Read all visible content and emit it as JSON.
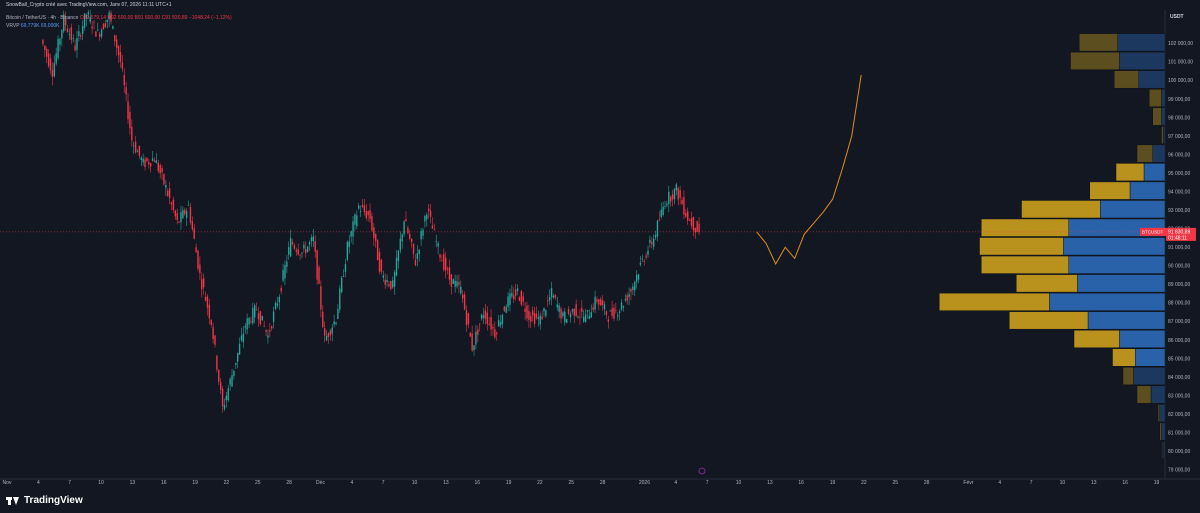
{
  "header": {
    "title": "SnowBall_Crypto créé avec TradingView.com, Janv 07, 2026 11:11 UTC+1"
  },
  "legend": {
    "symbol": "Bitcoin / TetherUS · 4h · Binance",
    "ohlc": "O92 579,14 H92 600,00 B91 600,00 C91 830,89 −1048,24 (−1,12%)",
    "vrvp_label": "VRVP",
    "vrvp_values": "69,779K 69,000K"
  },
  "branding": {
    "logo_text": "TradingView"
  },
  "colors": {
    "up": "#26a69a",
    "down": "#f23645",
    "projection": "#e08c1e",
    "vp_up": "#2962a8",
    "vp_down": "#b8921d",
    "price_label_bg": "#f23645",
    "background": "#131722"
  },
  "chart_data": {
    "type": "candlestick",
    "symbol": "BTCUSDT",
    "currency": "USDT",
    "current_price": "91 830,89",
    "countdown": "01:48:11",
    "ylim": [
      78500,
      103800
    ],
    "y_ticks": [
      "102 000,00",
      "101 000,00",
      "100 000,00",
      "99 000,00",
      "98 000,00",
      "97 000,00",
      "96 000,00",
      "95 000,00",
      "94 000,00",
      "93 000,00",
      "92 000,00",
      "91 000,00",
      "90 000,00",
      "89 000,00",
      "88 000,00",
      "87 000,00",
      "86 000,00",
      "85 000,00",
      "84 000,00",
      "83 000,00",
      "82 000,00",
      "81 000,00",
      "80 000,00",
      "79 000,00"
    ],
    "x_ticks": [
      "Nov",
      "4",
      "7",
      "10",
      "13",
      "16",
      "19",
      "22",
      "25",
      "28",
      "Déc",
      "4",
      "7",
      "10",
      "13",
      "16",
      "19",
      "22",
      "25",
      "28",
      "2026",
      "4",
      "7",
      "10",
      "13",
      "16",
      "19",
      "22",
      "25",
      "28",
      "Févr",
      "4",
      "7",
      "10",
      "13",
      "16",
      "19"
    ],
    "price_path": [
      {
        "x": 0,
        "y": 102200
      },
      {
        "x": 3,
        "y": 100500
      },
      {
        "x": 5,
        "y": 103300
      },
      {
        "x": 7,
        "y": 101800
      },
      {
        "x": 9,
        "y": 103600
      },
      {
        "x": 10,
        "y": 102500
      },
      {
        "x": 11,
        "y": 103500
      },
      {
        "x": 12,
        "y": 101000
      },
      {
        "x": 13,
        "y": 96800
      },
      {
        "x": 14,
        "y": 95500
      },
      {
        "x": 15,
        "y": 95800
      },
      {
        "x": 16,
        "y": 94200
      },
      {
        "x": 17,
        "y": 92300
      },
      {
        "x": 18,
        "y": 93200
      },
      {
        "x": 19,
        "y": 89500
      },
      {
        "x": 20,
        "y": 87000
      },
      {
        "x": 21,
        "y": 82300
      },
      {
        "x": 22,
        "y": 84500
      },
      {
        "x": 23,
        "y": 86800
      },
      {
        "x": 24,
        "y": 87700
      },
      {
        "x": 25,
        "y": 86200
      },
      {
        "x": 26,
        "y": 88500
      },
      {
        "x": 27,
        "y": 91300
      },
      {
        "x": 28,
        "y": 90700
      },
      {
        "x": 29,
        "y": 91400
      },
      {
        "x": 30,
        "y": 86000
      },
      {
        "x": 31,
        "y": 87200
      },
      {
        "x": 32,
        "y": 91000
      },
      {
        "x": 33,
        "y": 93200
      },
      {
        "x": 34,
        "y": 92600
      },
      {
        "x": 35,
        "y": 89500
      },
      {
        "x": 36,
        "y": 88900
      },
      {
        "x": 37,
        "y": 92500
      },
      {
        "x": 38,
        "y": 90200
      },
      {
        "x": 39,
        "y": 93100
      },
      {
        "x": 40,
        "y": 90900
      },
      {
        "x": 41,
        "y": 89300
      },
      {
        "x": 42,
        "y": 88700
      },
      {
        "x": 43,
        "y": 85600
      },
      {
        "x": 44,
        "y": 87500
      },
      {
        "x": 45,
        "y": 86400
      },
      {
        "x": 46,
        "y": 88000
      },
      {
        "x": 47,
        "y": 88600
      },
      {
        "x": 48,
        "y": 87300
      },
      {
        "x": 49,
        "y": 87100
      },
      {
        "x": 50,
        "y": 88500
      },
      {
        "x": 51,
        "y": 87200
      },
      {
        "x": 52,
        "y": 87600
      },
      {
        "x": 53,
        "y": 87200
      },
      {
        "x": 54,
        "y": 88200
      },
      {
        "x": 55,
        "y": 87300
      },
      {
        "x": 56,
        "y": 87700
      },
      {
        "x": 57,
        "y": 88700
      },
      {
        "x": 58,
        "y": 90300
      },
      {
        "x": 59,
        "y": 91500
      },
      {
        "x": 60,
        "y": 93500
      },
      {
        "x": 61,
        "y": 94100
      },
      {
        "x": 62,
        "y": 92600
      },
      {
        "x": 63,
        "y": 91830
      }
    ],
    "projection_path": [
      {
        "x": 63,
        "y": 91830
      },
      {
        "x": 64,
        "y": 91200
      },
      {
        "x": 65,
        "y": 90100
      },
      {
        "x": 66,
        "y": 91000
      },
      {
        "x": 67,
        "y": 90400
      },
      {
        "x": 68,
        "y": 91700
      },
      {
        "x": 69,
        "y": 92300
      },
      {
        "x": 70,
        "y": 92900
      },
      {
        "x": 71,
        "y": 93600
      },
      {
        "x": 72,
        "y": 95200
      },
      {
        "x": 73,
        "y": 97000
      },
      {
        "x": 74,
        "y": 100300
      }
    ],
    "volume_profile": [
      {
        "price": 102000,
        "up": 0.27,
        "down": 0.22,
        "faded": true
      },
      {
        "price": 101000,
        "up": 0.26,
        "down": 0.28,
        "faded": true
      },
      {
        "price": 100000,
        "up": 0.15,
        "down": 0.14,
        "faded": true
      },
      {
        "price": 99000,
        "up": 0.02,
        "down": 0.07,
        "faded": true
      },
      {
        "price": 98000,
        "up": 0.02,
        "down": 0.05,
        "faded": true
      },
      {
        "price": 97000,
        "up": 0.01,
        "down": 0.01,
        "faded": true
      },
      {
        "price": 96000,
        "up": 0.07,
        "down": 0.09,
        "faded": true
      },
      {
        "price": 95000,
        "up": 0.12,
        "down": 0.16,
        "faded": false
      },
      {
        "price": 94000,
        "up": 0.2,
        "down": 0.23,
        "faded": false
      },
      {
        "price": 93000,
        "up": 0.37,
        "down": 0.45,
        "faded": false
      },
      {
        "price": 92000,
        "up": 0.55,
        "down": 0.5,
        "faded": false
      },
      {
        "price": 91000,
        "up": 0.58,
        "down": 0.48,
        "faded": false
      },
      {
        "price": 90000,
        "up": 0.55,
        "down": 0.5,
        "faded": false
      },
      {
        "price": 89000,
        "up": 0.5,
        "down": 0.35,
        "faded": false
      },
      {
        "price": 88000,
        "up": 0.66,
        "down": 0.63,
        "faded": false
      },
      {
        "price": 87000,
        "up": 0.44,
        "down": 0.45,
        "faded": false
      },
      {
        "price": 86000,
        "up": 0.26,
        "down": 0.26,
        "faded": false
      },
      {
        "price": 85000,
        "up": 0.17,
        "down": 0.13,
        "faded": false
      },
      {
        "price": 84000,
        "up": 0.18,
        "down": 0.06,
        "faded": true
      },
      {
        "price": 83000,
        "up": 0.08,
        "down": 0.08,
        "faded": true
      },
      {
        "price": 82000,
        "up": 0.03,
        "down": 0.01,
        "faded": true
      },
      {
        "price": 81000,
        "up": 0.02,
        "down": 0.01,
        "faded": true
      },
      {
        "price": 80000,
        "up": 0.01,
        "down": 0.005,
        "faded": true
      }
    ],
    "grid": false,
    "legend_position": "top-left"
  }
}
